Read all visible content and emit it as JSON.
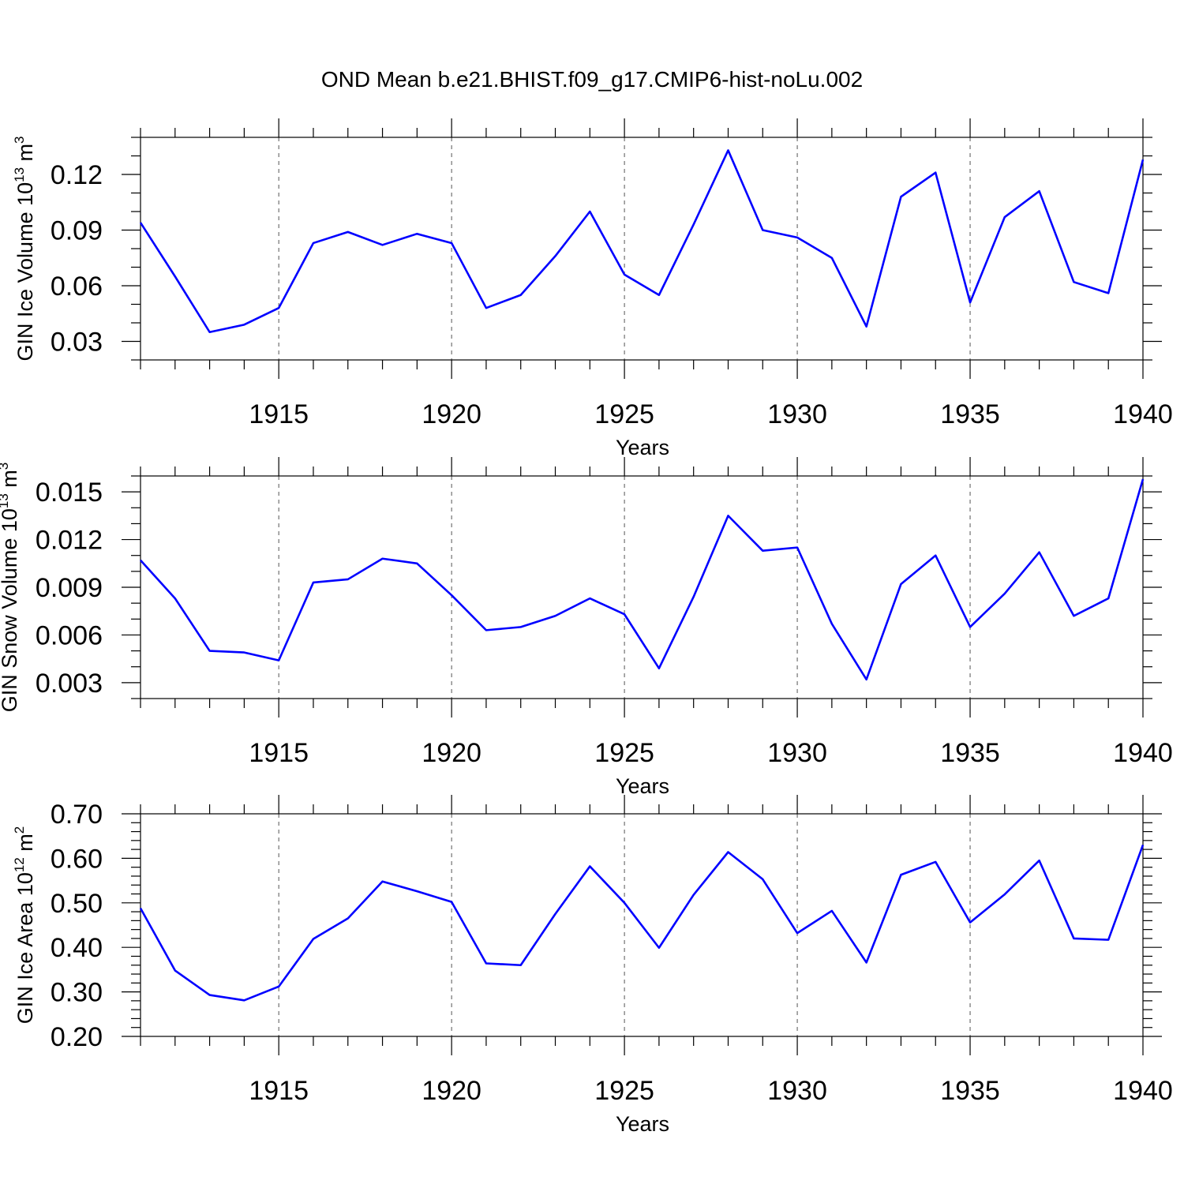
{
  "figure": {
    "title": "OND Mean b.e21.BHIST.f09_g17.CMIP6-hist-noLu.002"
  },
  "chart_data": [
    {
      "type": "line",
      "title": "",
      "xlabel": "Years",
      "ylabel": "GIN Ice Volume 10",
      "ylabel_sup": "13",
      "ylabel_unit": " m",
      "ylabel_unit_sup": "3",
      "xlim": [
        1911,
        1940
      ],
      "ylim": [
        0.02,
        0.14
      ],
      "x_ticks": [
        1915,
        1920,
        1925,
        1930,
        1935,
        1940
      ],
      "x_tick_labels": [
        "1915",
        "1920",
        "1925",
        "1930",
        "1935",
        "1940"
      ],
      "y_ticks": [
        0.03,
        0.06,
        0.09,
        0.12
      ],
      "y_tick_labels": [
        "0.03",
        "0.06",
        "0.09",
        "0.12"
      ],
      "y_minor_step": 0.01,
      "grid": "x-dashed",
      "line_color": "#0000ff",
      "x": [
        1911,
        1912,
        1913,
        1914,
        1915,
        1916,
        1917,
        1918,
        1919,
        1920,
        1921,
        1922,
        1923,
        1924,
        1925,
        1926,
        1927,
        1928,
        1929,
        1930,
        1931,
        1932,
        1933,
        1934,
        1935,
        1936,
        1937,
        1938,
        1939,
        1940
      ],
      "series": [
        {
          "values": [
            0.094,
            0.065,
            0.035,
            0.039,
            0.048,
            0.083,
            0.089,
            0.082,
            0.088,
            0.083,
            0.048,
            0.055,
            0.076,
            0.1,
            0.066,
            0.055,
            0.093,
            0.133,
            0.09,
            0.086,
            0.075,
            0.038,
            0.108,
            0.121,
            0.051,
            0.097,
            0.111,
            0.062,
            0.056,
            0.128
          ]
        }
      ]
    },
    {
      "type": "line",
      "title": "",
      "xlabel": "Years",
      "ylabel": "GIN Snow Volume 10",
      "ylabel_sup": "13",
      "ylabel_unit": " m",
      "ylabel_unit_sup": "3",
      "xlim": [
        1911,
        1940
      ],
      "ylim": [
        0.002,
        0.016
      ],
      "x_ticks": [
        1915,
        1920,
        1925,
        1930,
        1935,
        1940
      ],
      "x_tick_labels": [
        "1915",
        "1920",
        "1925",
        "1930",
        "1935",
        "1940"
      ],
      "y_ticks": [
        0.003,
        0.006,
        0.009,
        0.012,
        0.015
      ],
      "y_tick_labels": [
        "0.003",
        "0.006",
        "0.009",
        "0.012",
        "0.015"
      ],
      "y_minor_step": 0.001,
      "grid": "x-dashed",
      "line_color": "#0000ff",
      "x": [
        1911,
        1912,
        1913,
        1914,
        1915,
        1916,
        1917,
        1918,
        1919,
        1920,
        1921,
        1922,
        1923,
        1924,
        1925,
        1926,
        1927,
        1928,
        1929,
        1930,
        1931,
        1932,
        1933,
        1934,
        1935,
        1936,
        1937,
        1938,
        1939,
        1940
      ],
      "series": [
        {
          "values": [
            0.0107,
            0.0083,
            0.005,
            0.0049,
            0.0044,
            0.0093,
            0.0095,
            0.0108,
            0.0105,
            0.0085,
            0.0063,
            0.0065,
            0.0072,
            0.0083,
            0.0073,
            0.0039,
            0.0084,
            0.0135,
            0.0113,
            0.0115,
            0.0067,
            0.0032,
            0.0092,
            0.011,
            0.0065,
            0.0086,
            0.0112,
            0.0072,
            0.0083,
            0.0158
          ]
        }
      ]
    },
    {
      "type": "line",
      "title": "",
      "xlabel": "Years",
      "ylabel": "GIN Ice Area 10",
      "ylabel_sup": "12",
      "ylabel_unit": " m",
      "ylabel_unit_sup": "2",
      "xlim": [
        1911,
        1940
      ],
      "ylim": [
        0.2,
        0.7
      ],
      "x_ticks": [
        1915,
        1920,
        1925,
        1930,
        1935,
        1940
      ],
      "x_tick_labels": [
        "1915",
        "1920",
        "1925",
        "1930",
        "1935",
        "1940"
      ],
      "y_ticks": [
        0.2,
        0.3,
        0.4,
        0.5,
        0.6,
        0.7
      ],
      "y_tick_labels": [
        "0.20",
        "0.30",
        "0.40",
        "0.50",
        "0.60",
        "0.70"
      ],
      "y_minor_step": 0.02,
      "grid": "x-dashed",
      "line_color": "#0000ff",
      "x": [
        1911,
        1912,
        1913,
        1914,
        1915,
        1916,
        1917,
        1918,
        1919,
        1920,
        1921,
        1922,
        1923,
        1924,
        1925,
        1926,
        1927,
        1928,
        1929,
        1930,
        1931,
        1932,
        1933,
        1934,
        1935,
        1936,
        1937,
        1938,
        1939,
        1940
      ],
      "series": [
        {
          "values": [
            0.488,
            0.348,
            0.293,
            0.281,
            0.312,
            0.419,
            0.465,
            0.548,
            0.526,
            0.502,
            0.364,
            0.36,
            0.475,
            0.582,
            0.5,
            0.399,
            0.518,
            0.614,
            0.553,
            0.432,
            0.482,
            0.366,
            0.563,
            0.592,
            0.456,
            0.519,
            0.595,
            0.42,
            0.417,
            0.63
          ]
        }
      ]
    }
  ]
}
